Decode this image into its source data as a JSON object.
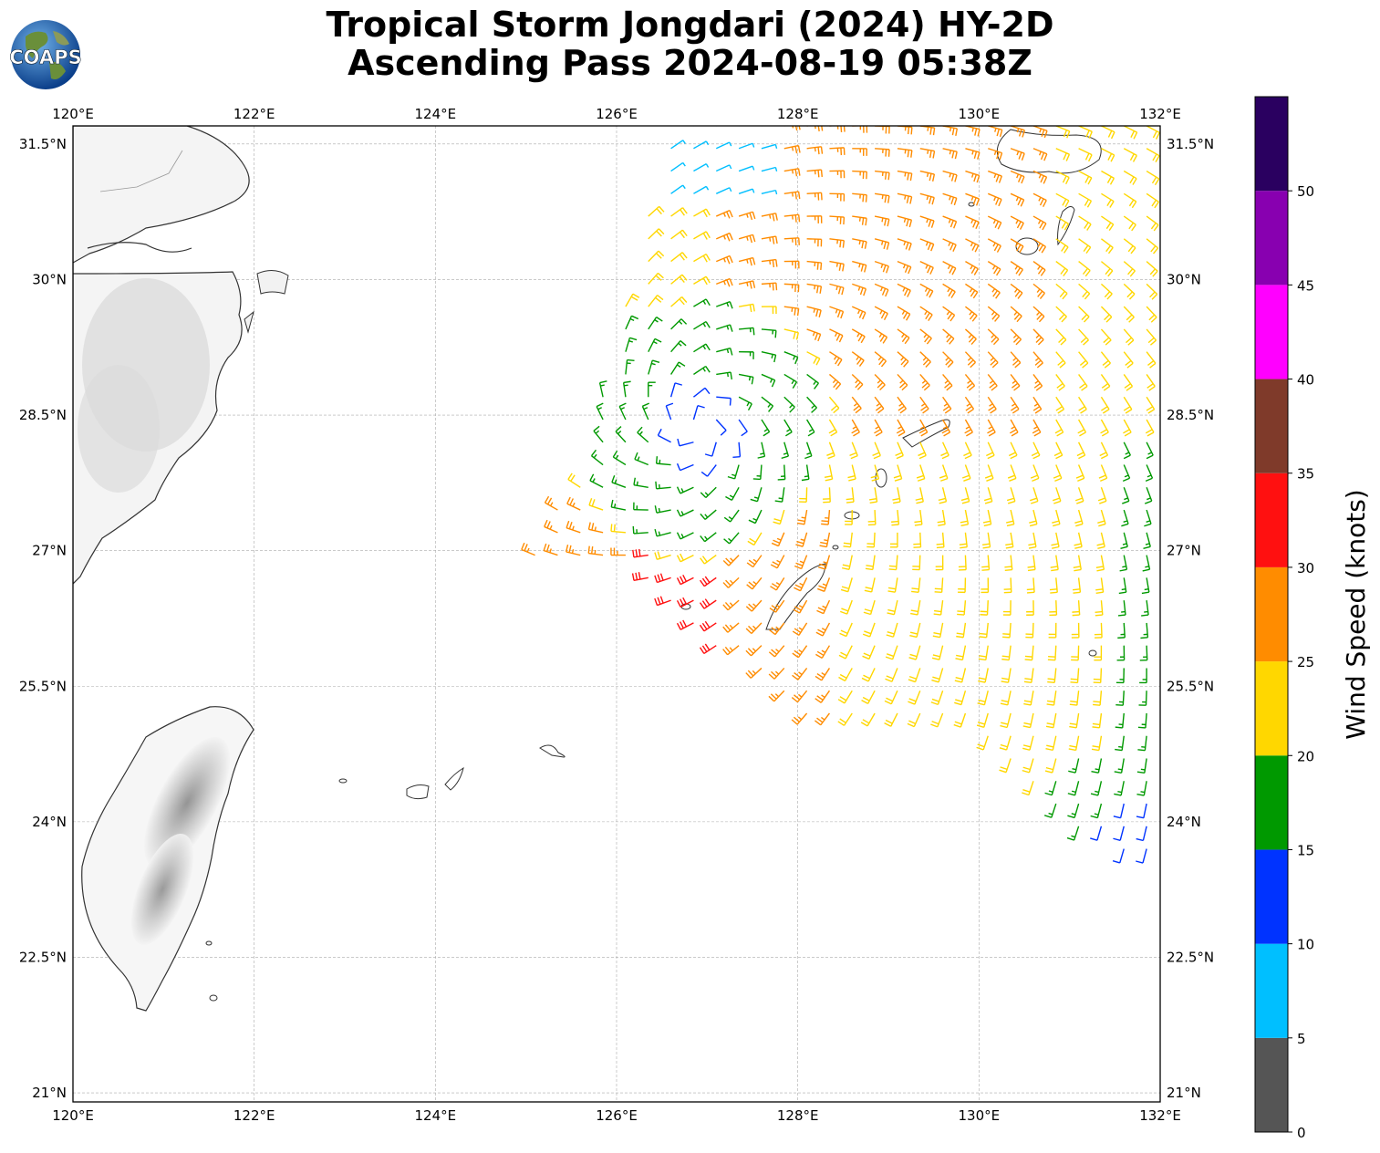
{
  "title": {
    "line1": "Tropical Storm Jongdari (2024) HY-2D",
    "line2": "Ascending Pass 2024-08-19 05:38Z"
  },
  "logo": {
    "text": "COAPS",
    "icon": "globe-icon"
  },
  "map": {
    "lon_range": [
      120,
      132
    ],
    "lat_range": [
      20.9,
      31.7
    ],
    "lon_ticks": [
      "120°E",
      "122°E",
      "124°E",
      "126°E",
      "128°E",
      "130°E",
      "132°E"
    ],
    "lat_ticks": [
      "31.5°N",
      "30°N",
      "28.5°N",
      "27°N",
      "25.5°N",
      "24°N",
      "22.5°N",
      "21°N"
    ],
    "grid": true
  },
  "colorbar": {
    "label": "Wind Speed (knots)",
    "ticks": [
      "0",
      "5",
      "10",
      "15",
      "20",
      "25",
      "30",
      "35",
      "40",
      "45",
      "50"
    ],
    "colors": [
      "#555555",
      "#00bfff",
      "#0033ff",
      "#009900",
      "#ffd700",
      "#ff8c00",
      "#ff1010",
      "#7f3a2a",
      "#ff00ff",
      "#8800b0",
      "#2a0060"
    ]
  }
}
